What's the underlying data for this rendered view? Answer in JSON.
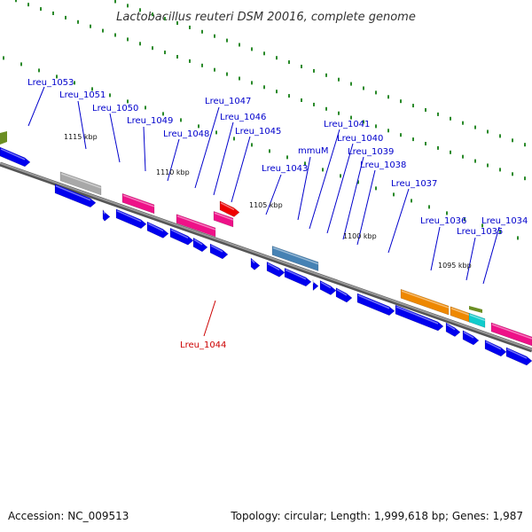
{
  "title": "Lactobacillus reuteri DSM 20016, complete genome",
  "footer": {
    "accession": "Accession: NC_009513",
    "summary": "Topology: circular; Length: 1,999,618 bp; Genes: 1,987"
  },
  "scale_labels": [
    "1115 kbp",
    "1110 kbp",
    "1105 kbp",
    "1100 kbp",
    "1095 kbp"
  ],
  "gene_labels": [
    {
      "text": "Lreu_1053",
      "color": "#0000cc"
    },
    {
      "text": "Lreu_1051",
      "color": "#0000cc"
    },
    {
      "text": "Lreu_1050",
      "color": "#0000cc"
    },
    {
      "text": "Lreu_1049",
      "color": "#0000cc"
    },
    {
      "text": "Lreu_1048",
      "color": "#0000cc"
    },
    {
      "text": "Lreu_1047",
      "color": "#0000cc"
    },
    {
      "text": "Lreu_1046",
      "color": "#0000cc"
    },
    {
      "text": "Lreu_1045",
      "color": "#0000cc"
    },
    {
      "text": "Lreu_1043",
      "color": "#0000cc"
    },
    {
      "text": "mmuM",
      "color": "#0000cc"
    },
    {
      "text": "Lreu_1041",
      "color": "#0000cc"
    },
    {
      "text": "Lreu_1040",
      "color": "#0000cc"
    },
    {
      "text": "Lreu_1039",
      "color": "#0000cc"
    },
    {
      "text": "Lreu_1038",
      "color": "#0000cc"
    },
    {
      "text": "Lreu_1037",
      "color": "#0000cc"
    },
    {
      "text": "Lreu_1036",
      "color": "#0000cc"
    },
    {
      "text": "Lreu_1035",
      "color": "#0000cc"
    },
    {
      "text": "Lreu_1034",
      "color": "#0000cc"
    },
    {
      "text": "Lreu_1044",
      "color": "#cc0000"
    }
  ],
  "colors": {
    "backbone": "#808080",
    "cds": "#0000ee",
    "pink": "#ee1188",
    "grey": "#a8a8a8",
    "steel": "#4682b4",
    "orange": "#ee8800",
    "red": "#ee0000",
    "cyan": "#11cccc",
    "olive": "#6b8e23",
    "tick": "#2a8a2a"
  }
}
